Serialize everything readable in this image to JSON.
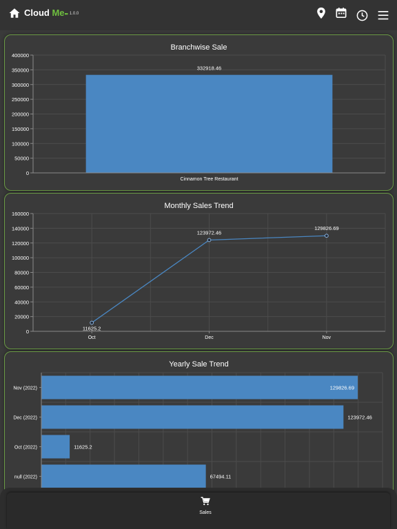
{
  "header": {
    "brand_cloud": "Cloud ",
    "brand_me": "Me",
    "brand_dots": "▪▪",
    "version": "1.0.0",
    "icons": [
      "home-icon",
      "location-pin-icon",
      "calendar-icon",
      "clock-icon",
      "menu-icon"
    ]
  },
  "cards": {
    "branchwise": {
      "title": "Branchwise Sale"
    },
    "monthly": {
      "title": "Monthly Sales Trend"
    },
    "yearly": {
      "title": "Yearly Sale Trend"
    }
  },
  "chart_data": [
    {
      "type": "bar",
      "title": "Branchwise Sale",
      "categories": [
        "Cinnamon Tree Restaurant"
      ],
      "values": [
        332918.46
      ],
      "data_labels": [
        "332918.46"
      ],
      "ylim": [
        0,
        400000
      ],
      "yticks": [
        "0",
        "50000",
        "100000",
        "150000",
        "200000",
        "250000",
        "300000",
        "350000",
        "400000"
      ],
      "color": "#4a87c2",
      "grid": true
    },
    {
      "type": "line",
      "title": "Monthly Sales Trend",
      "categories": [
        "Oct",
        "Dec",
        "Nov"
      ],
      "values": [
        11625.2,
        123972.46,
        129826.69
      ],
      "data_labels": [
        "11625.2",
        "123972.46",
        "129826.69"
      ],
      "ylim": [
        0,
        160000
      ],
      "yticks": [
        "0",
        "20000",
        "40000",
        "60000",
        "80000",
        "100000",
        "120000",
        "140000",
        "160000"
      ],
      "color": "#4a87c2",
      "grid": true
    },
    {
      "type": "bar",
      "orientation": "horizontal",
      "title": "Yearly Sale Trend",
      "categories": [
        "Nov (2022)",
        "Dec (2022)",
        "Oct (2022)",
        "null (2022)"
      ],
      "values": [
        129826.69,
        123972.46,
        11625.2,
        67494.11
      ],
      "data_labels": [
        "129826.69",
        "123972.46",
        "11625.2",
        "67494.11"
      ],
      "xlim": [
        0,
        140000
      ],
      "color": "#4a87c2",
      "grid": true
    }
  ],
  "bottom_nav": {
    "tabs": [
      {
        "label": "Sales",
        "icon": "cart-icon"
      }
    ]
  }
}
